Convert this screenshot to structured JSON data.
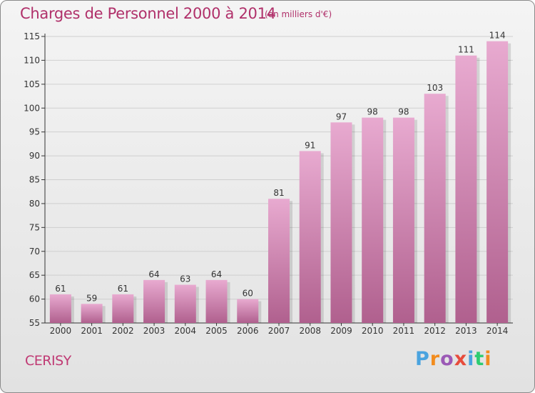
{
  "header": {
    "title": "Charges de Personnel 2000 à 2014",
    "unit_note": "(en milliers d'€)"
  },
  "footer": {
    "town": "CERISY",
    "brand": "Proxiti",
    "brand_colors": [
      "#4aa3df",
      "#f28c1e",
      "#9b59b6",
      "#e74c3c",
      "#4aa3df",
      "#2ecc71",
      "#f28c1e"
    ]
  },
  "colors": {
    "accent": "#b0306a",
    "bar_top": "#e8aad0",
    "bar_bottom": "#b0608e",
    "grid": "#cfcfcf"
  },
  "chart_data": {
    "type": "bar",
    "title": "Charges de Personnel 2000 à 2014",
    "subtitle": "(en milliers d'€)",
    "xlabel": "",
    "ylabel": "",
    "categories": [
      "2000",
      "2001",
      "2002",
      "2003",
      "2004",
      "2005",
      "2006",
      "2007",
      "2008",
      "2009",
      "2010",
      "2011",
      "2012",
      "2013",
      "2014"
    ],
    "values": [
      61,
      59,
      61,
      64,
      63,
      64,
      60,
      81,
      91,
      97,
      98,
      98,
      103,
      111,
      114
    ],
    "ylim": [
      55,
      115
    ],
    "yticks": [
      55,
      60,
      65,
      70,
      75,
      80,
      85,
      90,
      95,
      100,
      105,
      110,
      115
    ],
    "grid": true,
    "data_labels": true
  }
}
